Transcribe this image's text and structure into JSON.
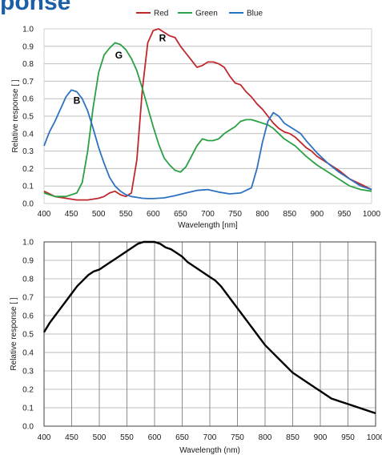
{
  "header": {
    "cut_title": "ponse"
  },
  "chart_data": [
    {
      "type": "line",
      "xlabel": "Wavelength [nm]",
      "ylabel": "Relative response [ ]",
      "xlim": [
        400,
        1000
      ],
      "ylim": [
        0,
        1
      ],
      "x_ticks": [
        "400",
        "450",
        "500",
        "550",
        "600",
        "650",
        "700",
        "750",
        "800",
        "850",
        "900",
        "950",
        "1000"
      ],
      "y_ticks": [
        "0.0",
        "0.1",
        "0.2",
        "0.3",
        "0.4",
        "0.5",
        "0.6",
        "0.7",
        "0.8",
        "0.9",
        "1.0"
      ],
      "grid": "horizontal",
      "legend": "top-center",
      "annotations": [
        {
          "text": "R",
          "x": 617,
          "y": 0.93
        },
        {
          "text": "G",
          "x": 537,
          "y": 0.83
        },
        {
          "text": "B",
          "x": 460,
          "y": 0.57
        }
      ],
      "series": [
        {
          "name": "Red",
          "color": "#c0272d",
          "x": [
            400,
            420,
            440,
            460,
            480,
            500,
            510,
            520,
            530,
            540,
            550,
            560,
            570,
            580,
            590,
            600,
            610,
            620,
            630,
            640,
            650,
            660,
            670,
            680,
            690,
            700,
            710,
            720,
            730,
            740,
            750,
            760,
            770,
            780,
            790,
            800,
            810,
            820,
            830,
            840,
            850,
            860,
            870,
            880,
            890,
            900,
            920,
            940,
            960,
            980,
            1000
          ],
          "values": [
            0.07,
            0.04,
            0.03,
            0.02,
            0.02,
            0.03,
            0.04,
            0.06,
            0.07,
            0.05,
            0.04,
            0.06,
            0.25,
            0.65,
            0.92,
            0.99,
            1.0,
            0.98,
            0.96,
            0.95,
            0.9,
            0.86,
            0.82,
            0.78,
            0.79,
            0.81,
            0.81,
            0.8,
            0.78,
            0.73,
            0.69,
            0.68,
            0.64,
            0.61,
            0.57,
            0.54,
            0.5,
            0.46,
            0.43,
            0.41,
            0.4,
            0.38,
            0.35,
            0.32,
            0.3,
            0.27,
            0.23,
            0.19,
            0.14,
            0.11,
            0.08
          ]
        },
        {
          "name": "Green",
          "color": "#2aa043",
          "x": [
            400,
            420,
            440,
            460,
            470,
            480,
            490,
            500,
            510,
            520,
            530,
            540,
            550,
            560,
            570,
            580,
            590,
            600,
            610,
            620,
            630,
            640,
            650,
            660,
            670,
            680,
            690,
            700,
            710,
            720,
            730,
            740,
            750,
            760,
            770,
            780,
            790,
            800,
            810,
            820,
            830,
            840,
            850,
            860,
            870,
            880,
            900,
            920,
            940,
            960,
            980,
            1000
          ],
          "values": [
            0.06,
            0.04,
            0.04,
            0.06,
            0.12,
            0.3,
            0.55,
            0.75,
            0.85,
            0.89,
            0.92,
            0.91,
            0.88,
            0.83,
            0.76,
            0.66,
            0.55,
            0.44,
            0.34,
            0.26,
            0.22,
            0.19,
            0.18,
            0.21,
            0.27,
            0.33,
            0.37,
            0.36,
            0.36,
            0.37,
            0.4,
            0.42,
            0.44,
            0.47,
            0.48,
            0.48,
            0.47,
            0.46,
            0.45,
            0.43,
            0.4,
            0.37,
            0.35,
            0.33,
            0.3,
            0.27,
            0.22,
            0.18,
            0.14,
            0.1,
            0.08,
            0.07
          ]
        },
        {
          "name": "Blue",
          "color": "#2d72c0",
          "x": [
            400,
            410,
            420,
            430,
            440,
            450,
            460,
            470,
            480,
            490,
            500,
            510,
            520,
            530,
            540,
            550,
            560,
            570,
            580,
            590,
            600,
            620,
            640,
            660,
            680,
            700,
            720,
            740,
            760,
            780,
            790,
            800,
            810,
            820,
            830,
            840,
            850,
            860,
            870,
            880,
            900,
            920,
            940,
            960,
            980,
            1000
          ],
          "values": [
            0.33,
            0.41,
            0.47,
            0.54,
            0.61,
            0.65,
            0.64,
            0.6,
            0.53,
            0.43,
            0.32,
            0.23,
            0.15,
            0.1,
            0.07,
            0.05,
            0.04,
            0.035,
            0.03,
            0.028,
            0.028,
            0.032,
            0.045,
            0.06,
            0.075,
            0.08,
            0.065,
            0.055,
            0.06,
            0.09,
            0.2,
            0.35,
            0.47,
            0.52,
            0.5,
            0.46,
            0.44,
            0.42,
            0.4,
            0.36,
            0.29,
            0.23,
            0.18,
            0.14,
            0.1,
            0.08
          ]
        }
      ]
    },
    {
      "type": "line",
      "xlabel": "Wavelength (nm)",
      "ylabel": "Relative response [ ]",
      "xlim": [
        400,
        1000
      ],
      "ylim": [
        0,
        1
      ],
      "x_ticks": [
        "400",
        "450",
        "500",
        "550",
        "600",
        "650",
        "700",
        "750",
        "800",
        "850",
        "900",
        "950",
        "1000"
      ],
      "y_ticks": [
        "0.0",
        "0.1",
        "0.2",
        "0.3",
        "0.4",
        "0.5",
        "0.6",
        "0.7",
        "0.8",
        "0.9",
        "1.0"
      ],
      "grid": "both",
      "series": [
        {
          "color": "#000000",
          "x": [
            400,
            410,
            420,
            430,
            440,
            450,
            460,
            470,
            480,
            490,
            500,
            510,
            520,
            530,
            540,
            550,
            560,
            570,
            580,
            590,
            600,
            610,
            620,
            630,
            640,
            650,
            660,
            670,
            680,
            690,
            700,
            710,
            720,
            730,
            740,
            750,
            760,
            770,
            780,
            790,
            800,
            810,
            820,
            830,
            840,
            850,
            860,
            870,
            880,
            890,
            900,
            910,
            920,
            930,
            940,
            950,
            960,
            970,
            980,
            990,
            1000
          ],
          "values": [
            0.51,
            0.56,
            0.6,
            0.64,
            0.68,
            0.72,
            0.76,
            0.79,
            0.82,
            0.84,
            0.85,
            0.87,
            0.89,
            0.91,
            0.93,
            0.95,
            0.97,
            0.99,
            1.0,
            1.0,
            1.0,
            0.99,
            0.97,
            0.96,
            0.94,
            0.92,
            0.89,
            0.87,
            0.85,
            0.83,
            0.81,
            0.79,
            0.76,
            0.72,
            0.68,
            0.64,
            0.6,
            0.56,
            0.52,
            0.48,
            0.44,
            0.41,
            0.38,
            0.35,
            0.32,
            0.29,
            0.27,
            0.25,
            0.23,
            0.21,
            0.19,
            0.17,
            0.15,
            0.14,
            0.13,
            0.12,
            0.11,
            0.1,
            0.09,
            0.08,
            0.07
          ]
        }
      ]
    }
  ]
}
